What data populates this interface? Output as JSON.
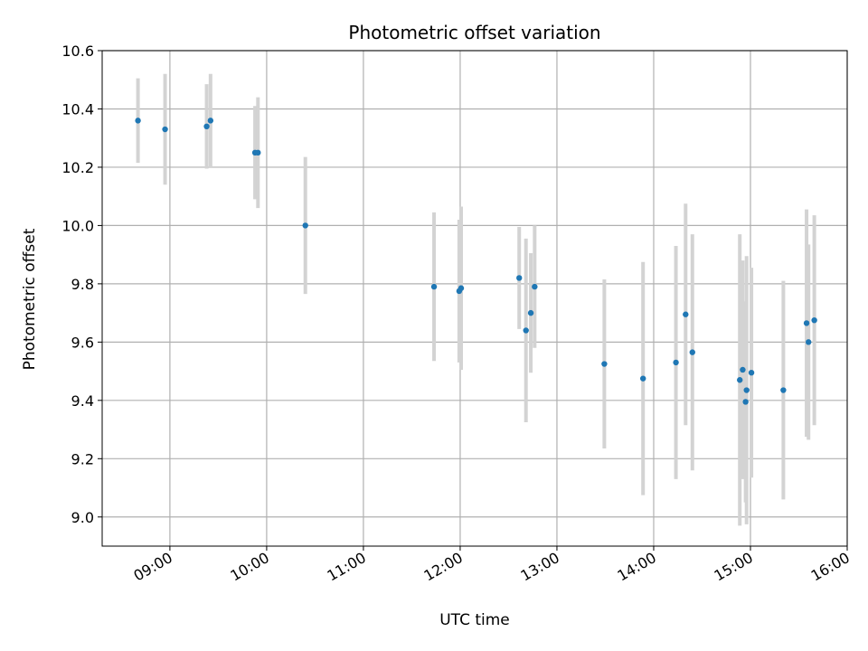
{
  "chart_data": {
    "type": "scatter",
    "title": "Photometric offset variation",
    "xlabel": "UTC time",
    "ylabel": "Photometric offset",
    "grid": true,
    "xlim_hours": [
      8.3,
      16.0
    ],
    "ylim": [
      8.9,
      10.6
    ],
    "x_ticks": [
      {
        "hour": 9,
        "label": "09:00"
      },
      {
        "hour": 10,
        "label": "10:00"
      },
      {
        "hour": 11,
        "label": "11:00"
      },
      {
        "hour": 12,
        "label": "12:00"
      },
      {
        "hour": 13,
        "label": "13:00"
      },
      {
        "hour": 14,
        "label": "14:00"
      },
      {
        "hour": 15,
        "label": "15:00"
      },
      {
        "hour": 16,
        "label": "16:00"
      }
    ],
    "y_ticks": [
      {
        "value": 9.0,
        "label": "9.0"
      },
      {
        "value": 9.2,
        "label": "9.2"
      },
      {
        "value": 9.4,
        "label": "9.4"
      },
      {
        "value": 9.6,
        "label": "9.6"
      },
      {
        "value": 9.8,
        "label": "9.8"
      },
      {
        "value": 10.0,
        "label": "10.0"
      },
      {
        "value": 10.2,
        "label": "10.2"
      },
      {
        "value": 10.4,
        "label": "10.4"
      },
      {
        "value": 10.6,
        "label": "10.6"
      }
    ],
    "series": [
      {
        "name": "offset",
        "color": "#1f77b4",
        "errorbar_color": "#d3d3d3",
        "points": [
          {
            "t": 8.67,
            "y": 10.36,
            "err": 0.145
          },
          {
            "t": 8.95,
            "y": 10.33,
            "err": 0.19
          },
          {
            "t": 9.38,
            "y": 10.34,
            "err": 0.145
          },
          {
            "t": 9.42,
            "y": 10.36,
            "err": 0.16
          },
          {
            "t": 9.88,
            "y": 10.25,
            "err": 0.16
          },
          {
            "t": 9.91,
            "y": 10.25,
            "err": 0.19
          },
          {
            "t": 10.4,
            "y": 10.0,
            "err": 0.235
          },
          {
            "t": 11.73,
            "y": 9.79,
            "err": 0.255
          },
          {
            "t": 11.99,
            "y": 9.775,
            "err": 0.245
          },
          {
            "t": 12.01,
            "y": 9.785,
            "err": 0.28
          },
          {
            "t": 12.61,
            "y": 9.82,
            "err": 0.175
          },
          {
            "t": 12.68,
            "y": 9.64,
            "err": 0.315
          },
          {
            "t": 12.73,
            "y": 9.7,
            "err": 0.205
          },
          {
            "t": 12.77,
            "y": 9.79,
            "err": 0.21
          },
          {
            "t": 13.49,
            "y": 9.525,
            "err": 0.29
          },
          {
            "t": 13.89,
            "y": 9.475,
            "err": 0.4
          },
          {
            "t": 14.23,
            "y": 9.53,
            "err": 0.4
          },
          {
            "t": 14.33,
            "y": 9.695,
            "err": 0.38
          },
          {
            "t": 14.4,
            "y": 9.565,
            "err": 0.405
          },
          {
            "t": 14.89,
            "y": 9.47,
            "err": 0.5
          },
          {
            "t": 14.92,
            "y": 9.505,
            "err": 0.375
          },
          {
            "t": 14.95,
            "y": 9.395,
            "err": 0.345
          },
          {
            "t": 14.96,
            "y": 9.435,
            "err": 0.46
          },
          {
            "t": 15.01,
            "y": 9.495,
            "err": 0.36
          },
          {
            "t": 15.34,
            "y": 9.435,
            "err": 0.375
          },
          {
            "t": 15.58,
            "y": 9.665,
            "err": 0.39
          },
          {
            "t": 15.6,
            "y": 9.6,
            "err": 0.335
          },
          {
            "t": 15.66,
            "y": 9.675,
            "err": 0.36
          }
        ]
      }
    ]
  }
}
